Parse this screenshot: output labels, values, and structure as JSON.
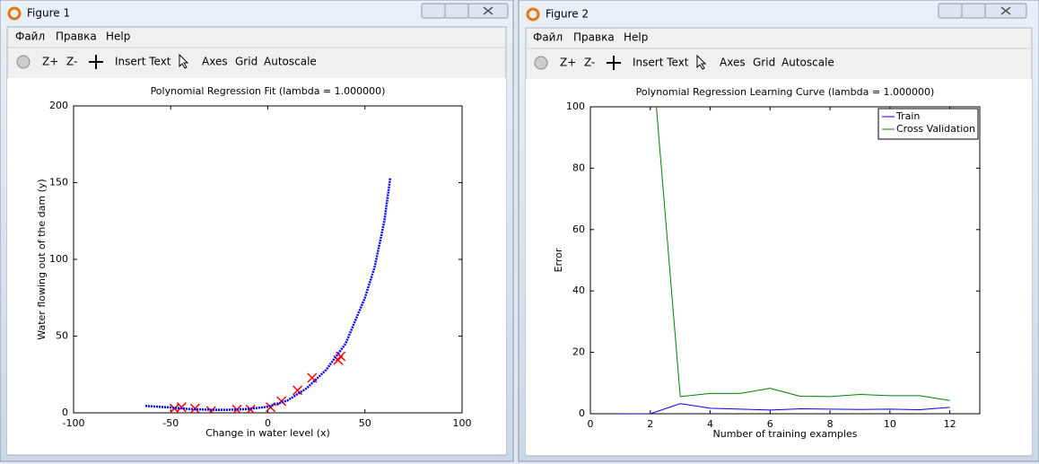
{
  "windows": [
    {
      "title": "Figure 1",
      "menu": [
        "Файл",
        "Правка",
        "Help"
      ],
      "toolbar": [
        "Z+",
        "Z-",
        "Insert Text",
        "Axes",
        "Grid",
        "Autoscale"
      ]
    },
    {
      "title": "Figure 2",
      "menu": [
        "Файл",
        "Правка",
        "Help"
      ],
      "toolbar": [
        "Z+",
        "Z-",
        "Insert Text",
        "Axes",
        "Grid",
        "Autoscale"
      ]
    }
  ],
  "chart_data": [
    {
      "type": "scatter",
      "title": "Polynomial Regression Fit (lambda = 1.000000)",
      "x_label": "Change in water level (x)",
      "y_label": "Water flowing out of the dam (y)",
      "xlim": [
        -100,
        100
      ],
      "ylim": [
        0,
        200
      ],
      "xticks": [
        -100,
        -50,
        0,
        50,
        100
      ],
      "yticks": [
        0,
        50,
        100,
        150,
        200
      ],
      "grid": false,
      "series": [
        {
          "type": "scatter",
          "color": "#ff0000",
          "x": [
            -48.1,
            -44.4,
            -37.5,
            -29.2,
            -15.9,
            -8.9,
            1.4,
            7.0,
            15.3,
            22.8,
            36.2,
            37.5
          ],
          "values": [
            2.8,
            3.7,
            2.8,
            1.2,
            2.1,
            2.1,
            3.7,
            7.6,
            14.7,
            22.8,
            34.4,
            36.8
          ]
        },
        {
          "type": "line",
          "color": "#0000ff",
          "x": [
            -63,
            -50,
            -40,
            -30,
            -20,
            -10,
            0,
            10,
            20,
            30,
            40,
            50,
            55,
            60,
            63
          ],
          "values": [
            4.5,
            3.5,
            2.5,
            2,
            2,
            2.5,
            4,
            8,
            16,
            28,
            45,
            75,
            95,
            125,
            153
          ]
        }
      ]
    },
    {
      "type": "line",
      "title": "Polynomial Regression Learning Curve (lambda = 1.000000)",
      "x_label": "Number of training examples",
      "y_label": "Error",
      "xlim": [
        0,
        13
      ],
      "ylim": [
        0,
        100
      ],
      "xticks": [
        0,
        2,
        4,
        6,
        8,
        10,
        12
      ],
      "yticks": [
        0,
        20,
        40,
        60,
        80,
        100
      ],
      "grid": false,
      "legend": "top-right",
      "x": [
        1,
        2,
        3,
        4,
        5,
        6,
        7,
        8,
        9,
        10,
        11,
        12
      ],
      "series": [
        {
          "name": "Train",
          "color": "#0000ff",
          "values": [
            0,
            0,
            3.3,
            1.8,
            1.5,
            1.2,
            1.6,
            1.5,
            1.4,
            1.5,
            1.3,
            2.1
          ]
        },
        {
          "name": "Cross Validation",
          "color": "#008000",
          "values": [
            null,
            124,
            5.6,
            6.6,
            6.6,
            8.3,
            5.7,
            5.6,
            6.3,
            5.9,
            5.9,
            4.3
          ]
        }
      ]
    }
  ]
}
